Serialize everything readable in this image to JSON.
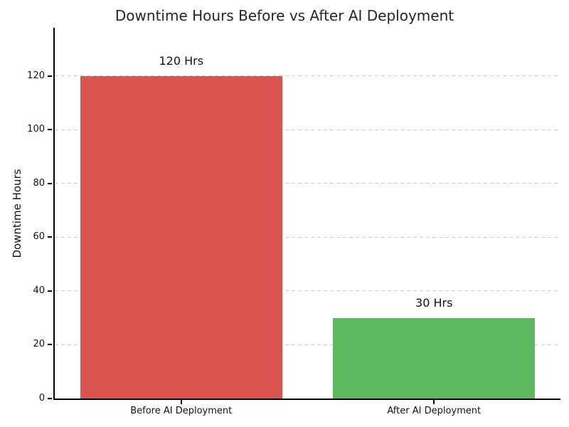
{
  "chart_data": {
    "type": "bar",
    "title": "Downtime Hours Before vs After AI Deployment",
    "ylabel": "Downtime Hours",
    "xlabel": "",
    "categories": [
      "Before AI Deployment",
      "After AI Deployment"
    ],
    "values": [
      120,
      30
    ],
    "bar_value_labels": [
      "120 Hrs",
      "30 Hrs"
    ],
    "bar_colors": [
      "#d9534f",
      "#5cb85c"
    ],
    "yticks": [
      0,
      20,
      40,
      60,
      80,
      100,
      120
    ],
    "ylim": [
      0,
      138
    ],
    "bar_width_fraction": 0.8,
    "grid": "horizontal-dashed",
    "grid_color": "#cccccc",
    "axis_color": "#000000",
    "title_color": "#1f2430",
    "legend": "none"
  }
}
